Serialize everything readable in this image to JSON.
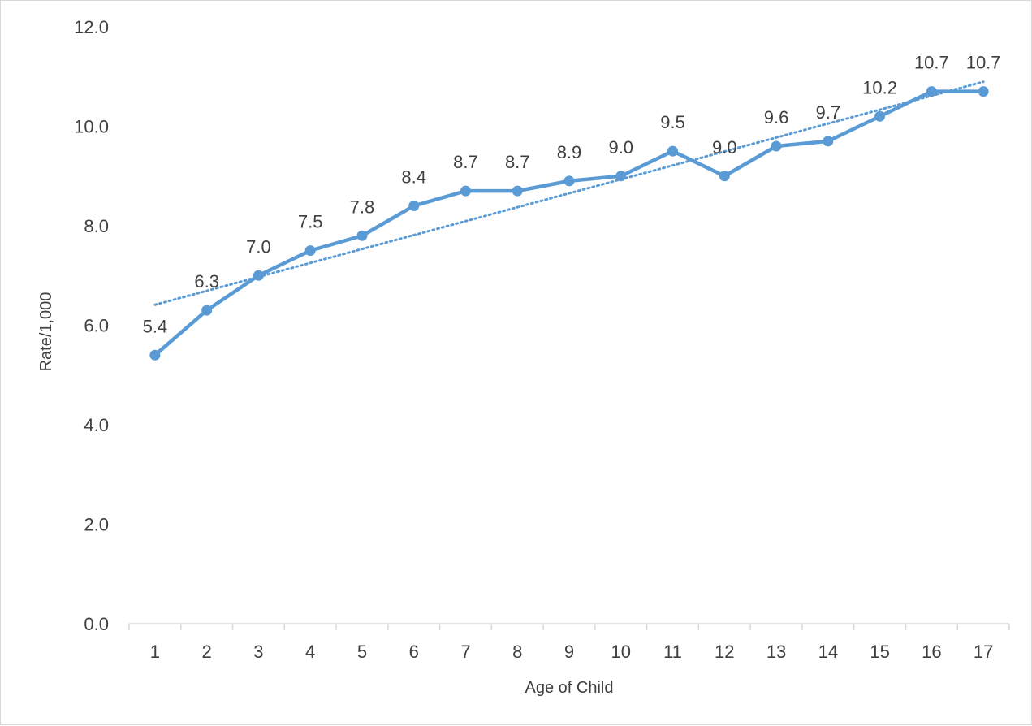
{
  "chart_data": {
    "type": "line",
    "title": "",
    "xlabel": "Age of Child",
    "ylabel": "Rate/1,000",
    "categories": [
      "1",
      "2",
      "3",
      "4",
      "5",
      "6",
      "7",
      "8",
      "9",
      "10",
      "11",
      "12",
      "13",
      "14",
      "15",
      "16",
      "17"
    ],
    "series": [
      {
        "values": [
          5.4,
          6.3,
          7.0,
          7.5,
          7.8,
          8.4,
          8.7,
          8.7,
          8.9,
          9.0,
          9.5,
          9.0,
          9.6,
          9.7,
          10.2,
          10.7,
          10.7
        ],
        "value_labels": [
          "5.4",
          "6.3",
          "7.0",
          "7.5",
          "7.8",
          "8.4",
          "8.7",
          "8.7",
          "8.9",
          "9.0",
          "9.5",
          "9.0",
          "9.6",
          "9.7",
          "10.2",
          "10.7",
          "10.7"
        ],
        "color": "#5b9bd5",
        "trendline": "linear"
      }
    ],
    "yticks": [
      "0.0",
      "2.0",
      "4.0",
      "6.0",
      "8.0",
      "10.0",
      "12.0"
    ],
    "ylim": [
      0,
      12
    ],
    "grid": false,
    "legend": "none"
  }
}
